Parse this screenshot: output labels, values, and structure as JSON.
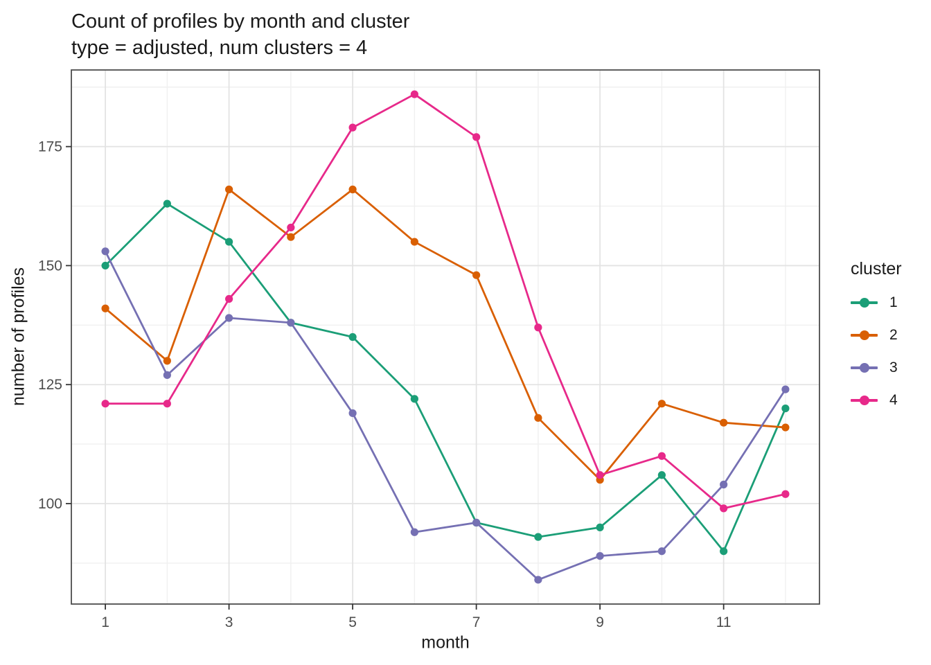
{
  "header": {
    "title": "Count of profiles by month and cluster",
    "subtitle": "type = adjusted, num clusters = 4"
  },
  "axes": {
    "x_title": "month",
    "y_title": "number of profiles"
  },
  "legend": {
    "title": "cluster",
    "items": [
      {
        "label": "1",
        "color": "#1B9E77"
      },
      {
        "label": "2",
        "color": "#D95F02"
      },
      {
        "label": "3",
        "color": "#7570B3"
      },
      {
        "label": "4",
        "color": "#E7298A"
      }
    ]
  },
  "panel_style": {
    "border_color": "#4D4D4D",
    "grid_major_color": "#E3E3E3",
    "grid_minor_color": "#F0F0F0",
    "tick_color": "#333333",
    "tick_label_color": "#4D4D4D",
    "background": "#FFFFFF"
  },
  "chart_data": {
    "type": "line",
    "title": "Count of profiles by month and cluster",
    "subtitle": "type = adjusted, num clusters = 4",
    "xlabel": "month",
    "ylabel": "number of profiles",
    "x": [
      1,
      2,
      3,
      4,
      5,
      6,
      7,
      8,
      9,
      10,
      11,
      12
    ],
    "series": [
      {
        "name": "1",
        "color": "#1B9E77",
        "values": [
          150,
          163,
          155,
          138,
          135,
          122,
          96,
          93,
          95,
          106,
          90,
          120
        ]
      },
      {
        "name": "2",
        "color": "#D95F02",
        "values": [
          141,
          130,
          166,
          156,
          166,
          155,
          148,
          118,
          105,
          121,
          117,
          116
        ]
      },
      {
        "name": "3",
        "color": "#7570B3",
        "values": [
          153,
          127,
          139,
          138,
          119,
          94,
          96,
          84,
          89,
          90,
          104,
          124
        ]
      },
      {
        "name": "4",
        "color": "#E7298A",
        "values": [
          121,
          121,
          143,
          158,
          179,
          186,
          177,
          137,
          106,
          110,
          99,
          102
        ]
      }
    ],
    "xlim": [
      0.45,
      12.55
    ],
    "ylim": [
      78.9,
      191.1
    ],
    "x_major_breaks": [
      1,
      3,
      5,
      7,
      9,
      11
    ],
    "x_minor_breaks": [
      2,
      4,
      6,
      8,
      10,
      12
    ],
    "y_major_breaks": [
      100,
      125,
      150,
      175
    ],
    "y_minor_breaks": [
      87.5,
      112.5,
      137.5,
      162.5,
      187.5
    ],
    "x_tick_labels": [
      "1",
      "3",
      "5",
      "7",
      "9",
      "11"
    ],
    "y_tick_labels": [
      "100",
      "125",
      "150",
      "175"
    ],
    "grid": true,
    "legend_position": "right",
    "legend_title": "cluster"
  }
}
